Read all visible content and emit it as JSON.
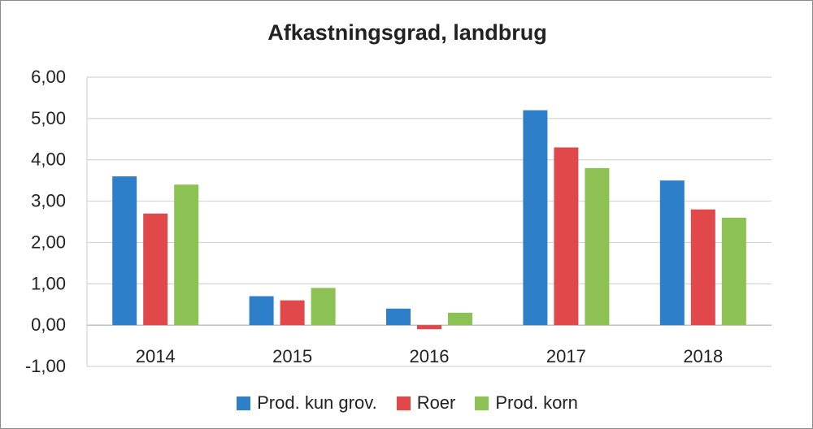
{
  "chart_data": {
    "type": "bar",
    "title": "Afkastningsgrad, landbrug",
    "xlabel": "",
    "ylabel": "",
    "categories": [
      "2014",
      "2015",
      "2016",
      "2017",
      "2018"
    ],
    "ylim": [
      -1,
      6
    ],
    "ytick_labels": [
      "-1,00",
      "0,00",
      "1,00",
      "2,00",
      "3,00",
      "4,00",
      "5,00",
      "6,00"
    ],
    "ytick_values": [
      -1,
      0,
      1,
      2,
      3,
      4,
      5,
      6
    ],
    "grid": true,
    "legend_position": "bottom",
    "series": [
      {
        "name": "Prod. kun grov.",
        "color": "#2e7fca",
        "values": [
          3.6,
          0.7,
          0.4,
          5.2,
          3.5
        ]
      },
      {
        "name": "Roer",
        "color": "#e0484a",
        "values": [
          2.7,
          0.6,
          -0.1,
          4.3,
          2.8
        ]
      },
      {
        "name": "Prod. korn",
        "color": "#8cc153",
        "values": [
          3.4,
          0.9,
          0.3,
          3.8,
          2.6
        ]
      }
    ]
  }
}
